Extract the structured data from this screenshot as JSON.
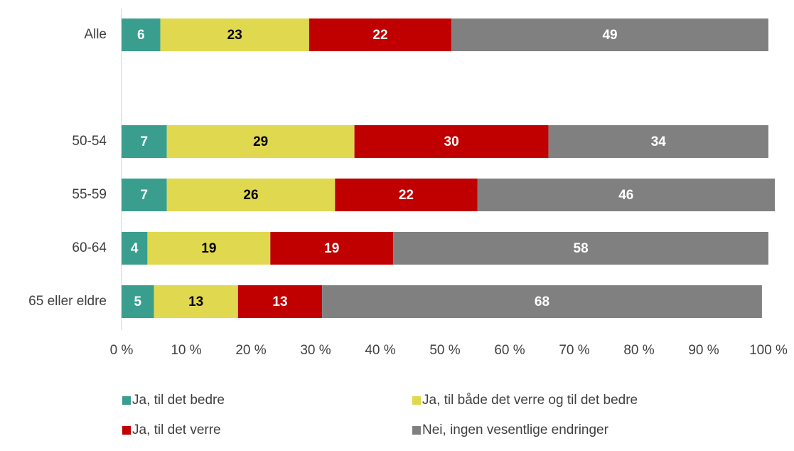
{
  "chart_data": {
    "type": "stacked_barh",
    "categories": [
      "Alle",
      null,
      "50-54",
      "55-59",
      "60-64",
      "65 eller eldre"
    ],
    "series": [
      {
        "name": "Ja, til det bedre",
        "color": "#3a9e8f",
        "label_color": "#ffffff",
        "values": [
          6,
          null,
          7,
          7,
          4,
          5
        ]
      },
      {
        "name": "Ja, til både det verre og til det bedre",
        "color": "#e0d84e",
        "label_color": "#000000",
        "values": [
          23,
          null,
          29,
          26,
          19,
          13
        ]
      },
      {
        "name": "Ja, til det verre",
        "color": "#c00000",
        "label_color": "#ffffff",
        "values": [
          22,
          null,
          30,
          22,
          19,
          13
        ]
      },
      {
        "name": "Nei, ingen vesentlige endringer",
        "color": "#808080",
        "label_color": "#ffffff",
        "values": [
          49,
          null,
          34,
          46,
          58,
          68
        ]
      }
    ],
    "xlim": [
      0,
      100
    ],
    "xticks": [
      {
        "value": 0,
        "label": "0 %"
      },
      {
        "value": 10,
        "label": "10 %"
      },
      {
        "value": 20,
        "label": "20 %"
      },
      {
        "value": 30,
        "label": "30 %"
      },
      {
        "value": 40,
        "label": "40 %"
      },
      {
        "value": 50,
        "label": "50 %"
      },
      {
        "value": 60,
        "label": "60 %"
      },
      {
        "value": 70,
        "label": "70 %"
      },
      {
        "value": 80,
        "label": "80 %"
      },
      {
        "value": 90,
        "label": "90 %"
      },
      {
        "value": 100,
        "label": "100 %"
      }
    ],
    "legend": "bottom"
  }
}
